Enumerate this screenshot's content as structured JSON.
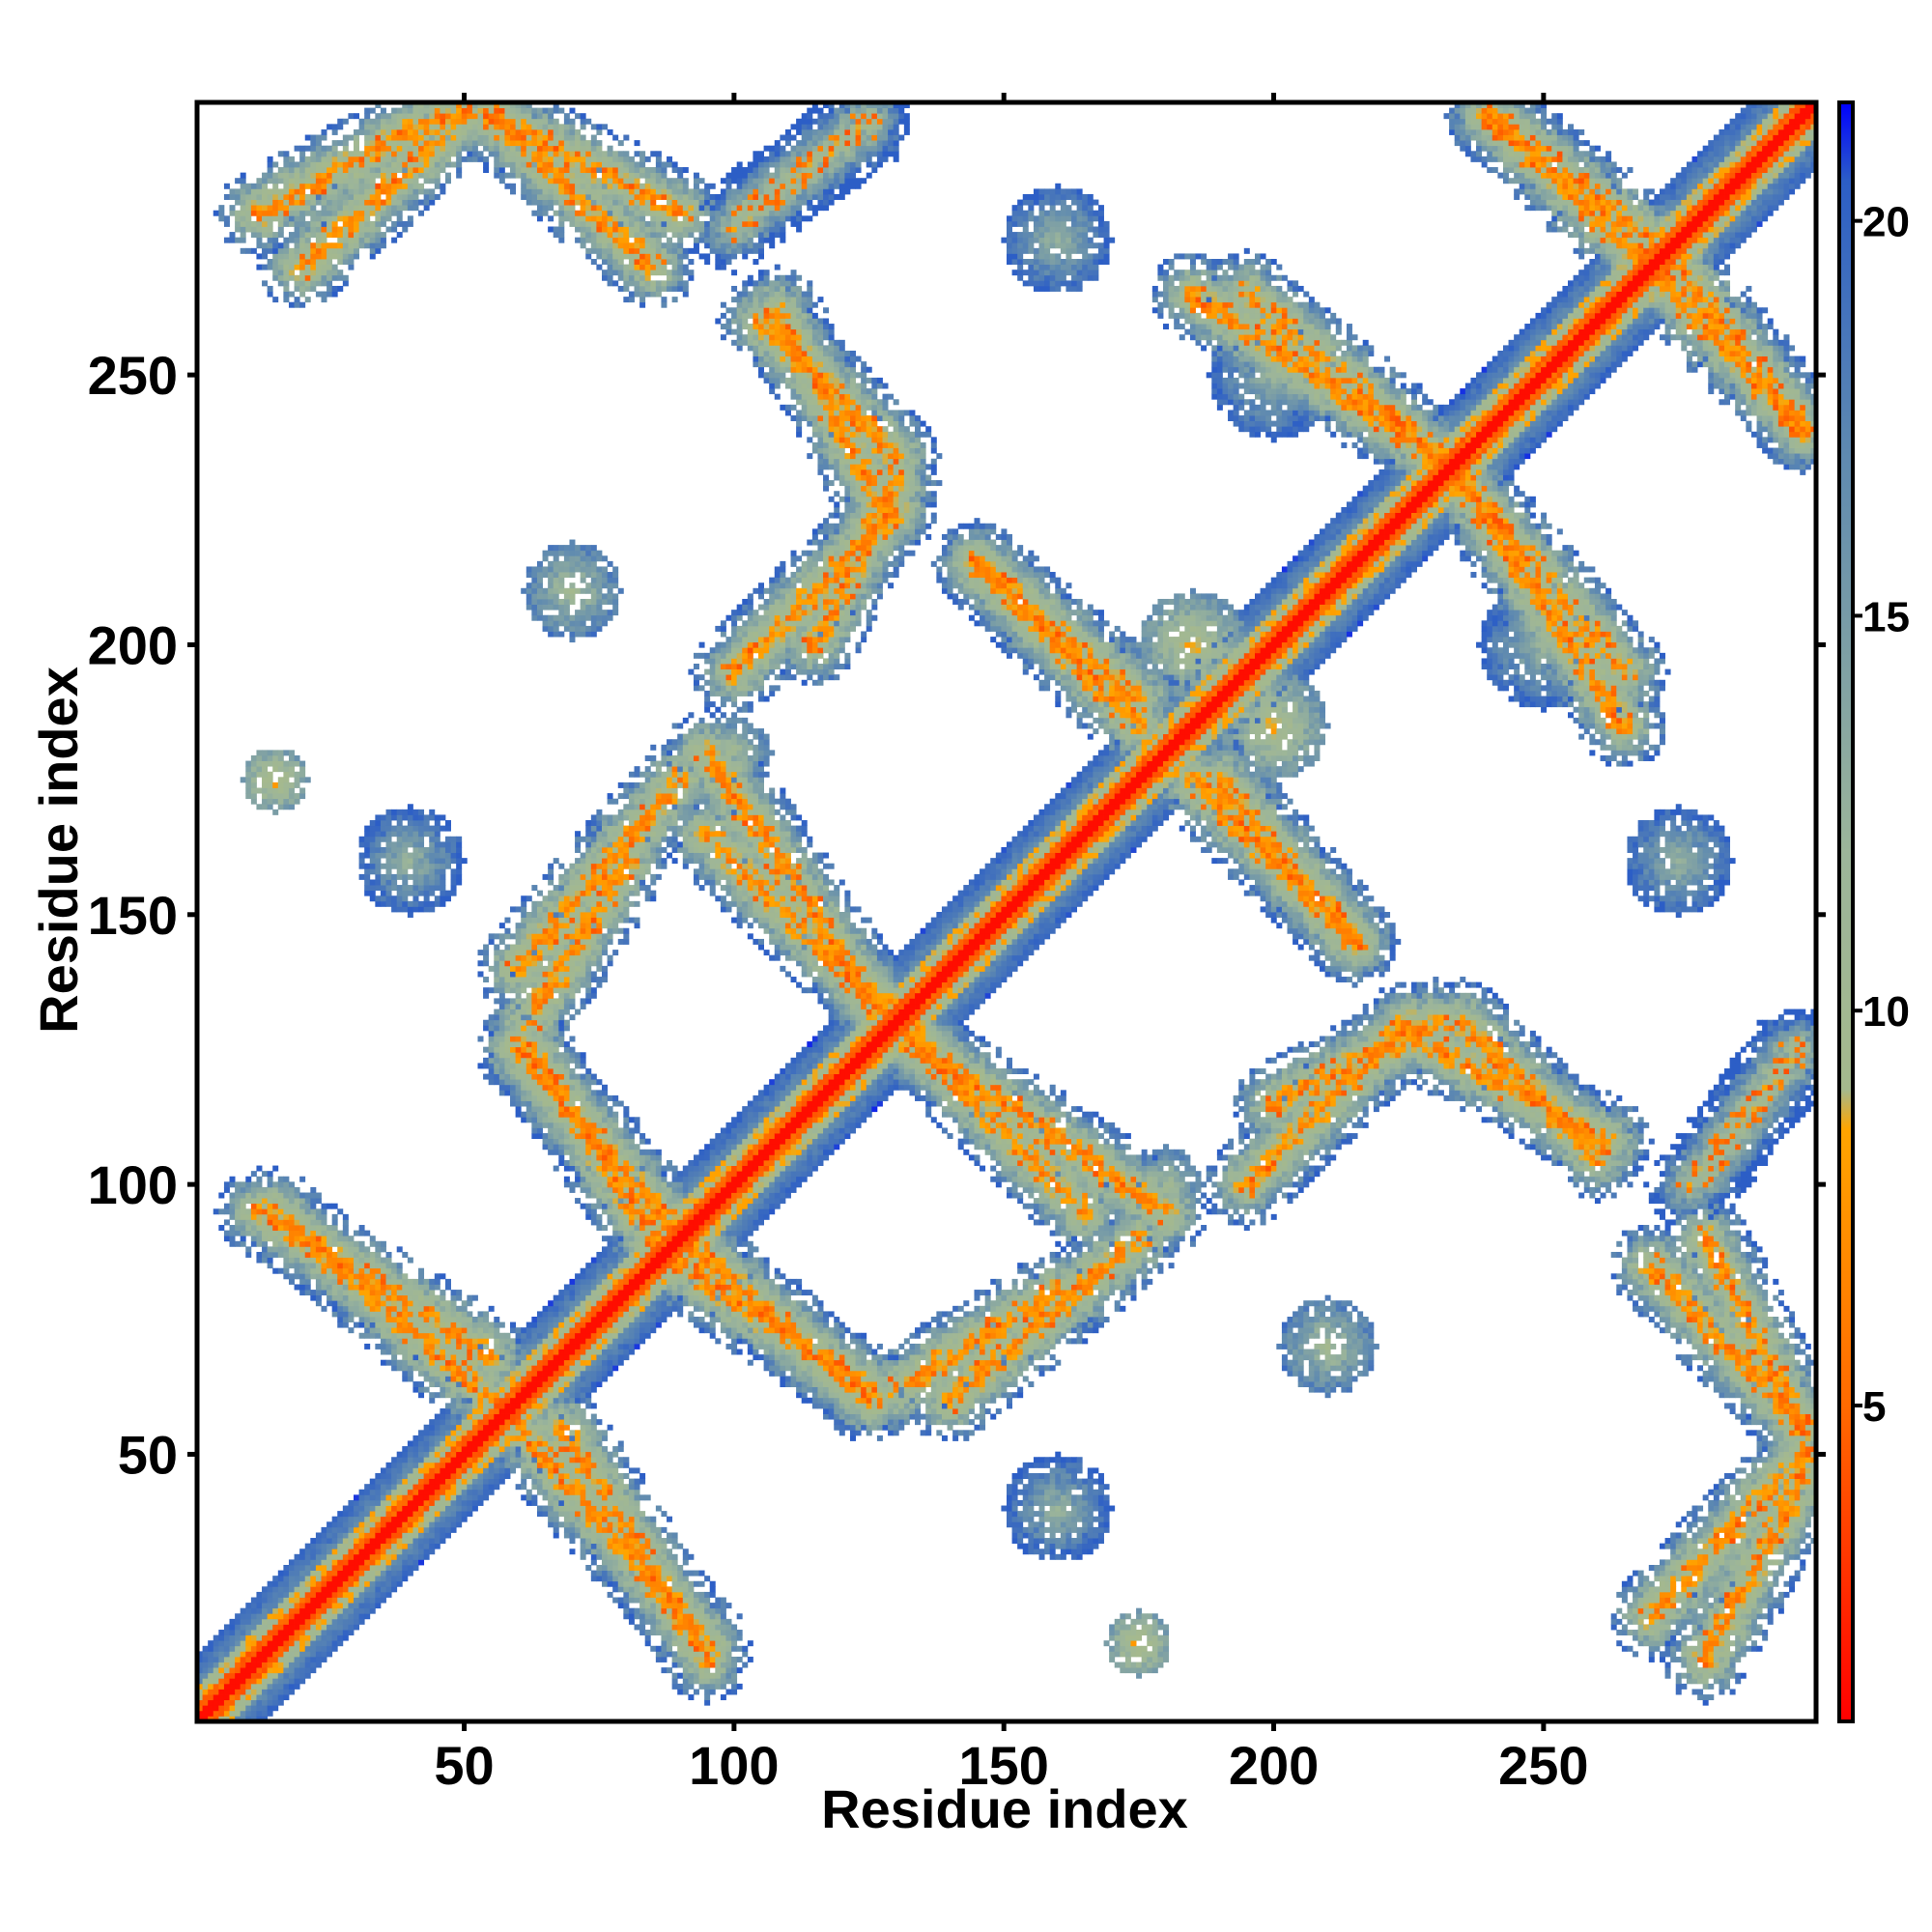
{
  "chart_data": {
    "type": "heatmap",
    "title": "",
    "xlabel": "Residue index",
    "ylabel": "Residue index",
    "n_residues": 300,
    "xlim": [
      1,
      300
    ],
    "ylim": [
      1,
      300
    ],
    "x_ticks": [
      50,
      100,
      150,
      200,
      250
    ],
    "y_ticks": [
      50,
      100,
      150,
      200,
      250
    ],
    "grid": false,
    "legend": "right colorbar",
    "colorbar": {
      "range": [
        1,
        21.5
      ],
      "ticks": [
        5,
        10,
        15,
        20
      ],
      "colors": [
        {
          "value": 1,
          "color": "#ff0000"
        },
        {
          "value": 5,
          "color": "#ff6a00"
        },
        {
          "value": 8.5,
          "color": "#ffa500"
        },
        {
          "value": 9,
          "color": "#a5b98d"
        },
        {
          "value": 12,
          "color": "#9cb59a"
        },
        {
          "value": 17,
          "color": "#5f8ab0"
        },
        {
          "value": 20.5,
          "color": "#2c5ec6"
        },
        {
          "value": 21.5,
          "color": "#0000ff"
        }
      ]
    },
    "background_value": 21.5,
    "description_of_values": "pairwise residue distance; symmetric matrix, main diagonal ~1",
    "contact_bands": [
      {
        "from": [
          12,
          280
        ],
        "to": [
          45,
          298
        ],
        "min_distance": 5
      },
      {
        "from": [
          55,
          298
        ],
        "to": [
          90,
          280
        ],
        "min_distance": 5
      },
      {
        "from": [
          102,
          280
        ],
        "to": [
          125,
          296
        ],
        "min_distance": 8
      },
      {
        "from": [
          108,
          262
        ],
        "to": [
          128,
          225
        ],
        "min_distance": 5
      },
      {
        "from": [
          100,
          195
        ],
        "to": [
          130,
          225
        ],
        "min_distance": 5
      },
      {
        "from": [
          60,
          140
        ],
        "to": [
          90,
          175
        ],
        "min_distance": 5
      },
      {
        "from": [
          95,
          165
        ],
        "to": [
          135,
          125
        ],
        "min_distance": 5
      },
      {
        "from": [
          60,
          125
        ],
        "to": [
          95,
          85
        ],
        "min_distance": 5
      },
      {
        "from": [
          90,
          85
        ],
        "to": [
          125,
          62
        ],
        "min_distance": 5
      },
      {
        "from": [
          130,
          62
        ],
        "to": [
          160,
          80
        ],
        "min_distance": 5
      },
      {
        "from": [
          12,
          95
        ],
        "to": [
          55,
          68
        ],
        "min_distance": 5
      },
      {
        "from": [
          60,
          55
        ],
        "to": [
          95,
          15
        ],
        "min_distance": 5
      },
      {
        "from": [
          135,
          125
        ],
        "to": [
          180,
          95
        ],
        "min_distance": 5
      },
      {
        "from": [
          145,
          215
        ],
        "to": [
          175,
          190
        ],
        "min_distance": 5
      },
      {
        "from": [
          185,
          175
        ],
        "to": [
          215,
          145
        ],
        "min_distance": 5
      },
      {
        "from": [
          200,
          115
        ],
        "to": [
          230,
          130
        ],
        "min_distance": 5
      },
      {
        "from": [
          235,
          130
        ],
        "to": [
          260,
          105
        ],
        "min_distance": 5
      },
      {
        "from": [
          185,
          265
        ],
        "to": [
          230,
          235
        ],
        "min_distance": 5
      },
      {
        "from": [
          235,
          230
        ],
        "to": [
          265,
          195
        ],
        "min_distance": 5
      },
      {
        "from": [
          240,
          298
        ],
        "to": [
          270,
          270
        ],
        "min_distance": 5
      },
      {
        "from": [
          275,
          270
        ],
        "to": [
          298,
          240
        ],
        "min_distance": 5
      },
      {
        "from": [
          270,
          85
        ],
        "to": [
          298,
          55
        ],
        "min_distance": 5
      },
      {
        "from": [
          270,
          20
        ],
        "to": [
          298,
          50
        ],
        "min_distance": 5
      },
      {
        "from": [
          277,
          100
        ],
        "to": [
          298,
          125
        ],
        "min_distance": 8
      }
    ],
    "contact_blobs": [
      {
        "center": [
          15,
          175
        ],
        "radius": 6,
        "min_distance": 6
      },
      {
        "center": [
          175,
          15
        ],
        "radius": 6,
        "min_distance": 6
      },
      {
        "center": [
          180,
          100
        ],
        "radius": 7,
        "min_distance": 9
      },
      {
        "center": [
          100,
          180
        ],
        "radius": 7,
        "min_distance": 9
      },
      {
        "center": [
          185,
          200
        ],
        "radius": 10,
        "min_distance": 7
      },
      {
        "center": [
          200,
          185
        ],
        "radius": 10,
        "min_distance": 7
      },
      {
        "center": [
          210,
          70
        ],
        "radius": 9,
        "min_distance": 9
      },
      {
        "center": [
          70,
          210
        ],
        "radius": 9,
        "min_distance": 9
      },
      {
        "center": [
          160,
          40
        ],
        "radius": 10,
        "min_distance": 11
      },
      {
        "center": [
          40,
          160
        ],
        "radius": 10,
        "min_distance": 11
      },
      {
        "center": [
          250,
          200
        ],
        "radius": 12,
        "min_distance": 11
      },
      {
        "center": [
          200,
          250
        ],
        "radius": 12,
        "min_distance": 11
      },
      {
        "center": [
          160,
          275
        ],
        "radius": 10,
        "min_distance": 11
      },
      {
        "center": [
          275,
          160
        ],
        "radius": 10,
        "min_distance": 11
      }
    ]
  }
}
